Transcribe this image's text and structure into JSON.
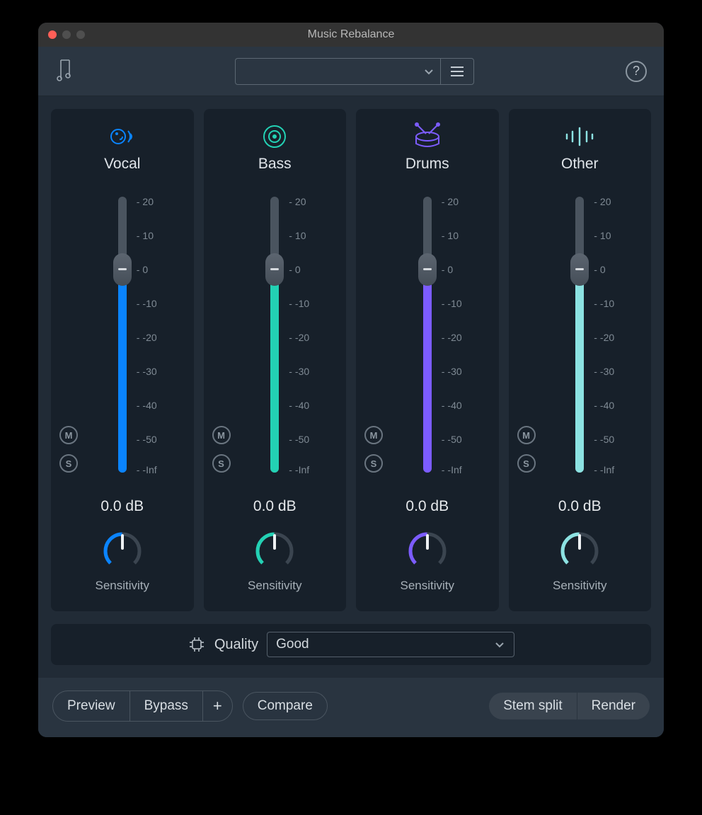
{
  "window": {
    "title": "Music Rebalance"
  },
  "colors": {
    "window_bg": "#293440",
    "panel_bg": "#212b36",
    "card_bg": "#17202a",
    "track": "#4a545f",
    "text": "#d8dde2",
    "muted_text": "#7f8a94"
  },
  "slider": {
    "min": -999,
    "max": 20,
    "ticks": [
      {
        "value": 20,
        "label": "20",
        "pos_pct": 1.8
      },
      {
        "value": 10,
        "label": "10",
        "pos_pct": 14.1
      },
      {
        "value": 0,
        "label": "0",
        "pos_pct": 26.4
      },
      {
        "value": -10,
        "label": "-10",
        "pos_pct": 38.7
      },
      {
        "value": -20,
        "label": "-20",
        "pos_pct": 51.0
      },
      {
        "value": -30,
        "label": "-30",
        "pos_pct": 63.3
      },
      {
        "value": -40,
        "label": "-40",
        "pos_pct": 75.6
      },
      {
        "value": -50,
        "label": "-50",
        "pos_pct": 87.9
      },
      {
        "value": -999,
        "label": "-Inf",
        "pos_pct": 99.0
      }
    ],
    "thumb_pos_pct": 26.4
  },
  "channels": [
    {
      "key": "vocal",
      "label": "Vocal",
      "accent": "#0a84ff",
      "db_text": "0.0 dB",
      "sensitivity_label": "Sensitivity",
      "mute_label": "M",
      "solo_label": "S",
      "icon": "voice"
    },
    {
      "key": "bass",
      "label": "Bass",
      "accent": "#23d1b4",
      "db_text": "0.0 dB",
      "sensitivity_label": "Sensitivity",
      "mute_label": "M",
      "solo_label": "S",
      "icon": "speaker"
    },
    {
      "key": "drums",
      "label": "Drums",
      "accent": "#7c5cff",
      "db_text": "0.0 dB",
      "sensitivity_label": "Sensitivity",
      "mute_label": "M",
      "solo_label": "S",
      "icon": "drum"
    },
    {
      "key": "other",
      "label": "Other",
      "accent": "#8ce2e2",
      "db_text": "0.0 dB",
      "sensitivity_label": "Sensitivity",
      "mute_label": "M",
      "solo_label": "S",
      "icon": "wave"
    }
  ],
  "quality": {
    "label": "Quality",
    "value": "Good"
  },
  "footer": {
    "preview": "Preview",
    "bypass": "Bypass",
    "plus": "+",
    "compare": "Compare",
    "stem_split": "Stem split",
    "render": "Render"
  }
}
